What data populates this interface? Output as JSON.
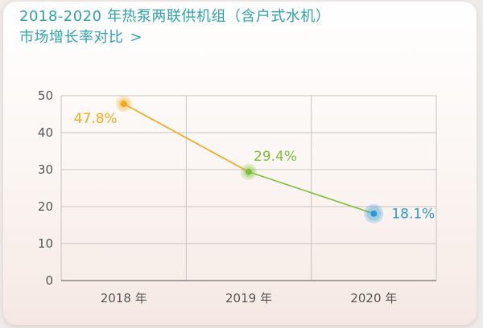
{
  "title_line1": "2018-2020 年热泵两联供机组（含户式水机）",
  "title_line2": "市场增长率对比",
  "title_chevron": ">",
  "chart_data": {
    "type": "line",
    "title": "2018-2020 年热泵两联供机组（含户式水机）市场增长率对比",
    "xlabel": "",
    "ylabel": "",
    "categories": [
      "2018 年",
      "2019 年",
      "2020 年"
    ],
    "series": [
      {
        "values": [
          47.8,
          29.4,
          18.1
        ],
        "labels": [
          "47.8%",
          "29.4%",
          "18.1%"
        ],
        "point_colors": [
          "#f5a81c",
          "#7cbf3c",
          "#2a9ad6"
        ]
      }
    ],
    "ylim": [
      0,
      50
    ],
    "yticks": [
      0,
      10,
      20,
      30,
      40,
      50
    ],
    "grid": true,
    "legend": "none"
  }
}
